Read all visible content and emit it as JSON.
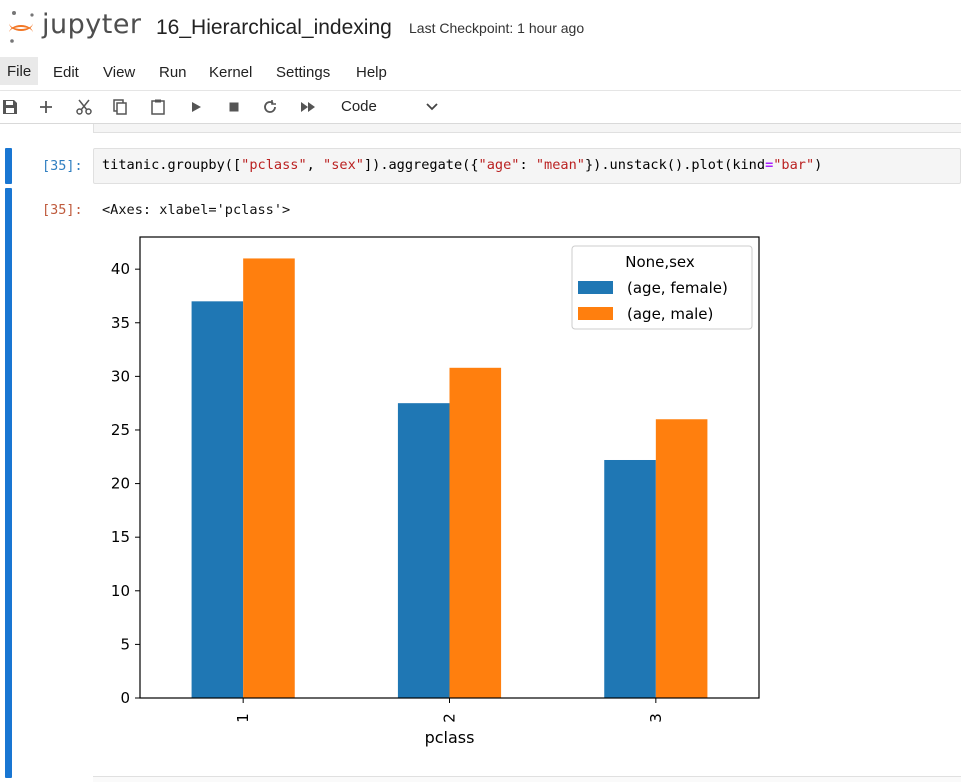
{
  "header": {
    "brand": "jupyter",
    "notebook_name": "16_Hierarchical_indexing",
    "checkpoint": "Last Checkpoint: 1 hour ago"
  },
  "menu": {
    "items": [
      "File",
      "Edit",
      "View",
      "Run",
      "Kernel",
      "Settings",
      "Help"
    ]
  },
  "toolbar": {
    "icons": [
      "save-icon",
      "add-cell-icon",
      "cut-icon",
      "copy-icon",
      "paste-icon",
      "run-icon",
      "stop-icon",
      "restart-icon",
      "run-all-icon"
    ],
    "cell_type": "Code"
  },
  "cell": {
    "in_prompt": "[35]:",
    "out_prompt": "[35]:",
    "code_tokens": [
      {
        "t": "titanic",
        "c": "name"
      },
      {
        "t": ".",
        "c": "punc"
      },
      {
        "t": "groupby",
        "c": "name"
      },
      {
        "t": "([",
        "c": "punc"
      },
      {
        "t": "\"pclass\"",
        "c": "str"
      },
      {
        "t": ", ",
        "c": "punc"
      },
      {
        "t": "\"sex\"",
        "c": "str"
      },
      {
        "t": "])",
        "c": "punc"
      },
      {
        "t": ".",
        "c": "punc"
      },
      {
        "t": "aggregate",
        "c": "name"
      },
      {
        "t": "({",
        "c": "punc"
      },
      {
        "t": "\"age\"",
        "c": "str"
      },
      {
        "t": ": ",
        "c": "punc"
      },
      {
        "t": "\"mean\"",
        "c": "str"
      },
      {
        "t": "})",
        "c": "punc"
      },
      {
        "t": ".",
        "c": "punc"
      },
      {
        "t": "unstack",
        "c": "name"
      },
      {
        "t": "()",
        "c": "punc"
      },
      {
        "t": ".",
        "c": "punc"
      },
      {
        "t": "plot",
        "c": "name"
      },
      {
        "t": "(",
        "c": "punc"
      },
      {
        "t": "kind",
        "c": "name"
      },
      {
        "t": "=",
        "c": "op"
      },
      {
        "t": "\"bar\"",
        "c": "str"
      },
      {
        "t": ")",
        "c": "punc"
      }
    ],
    "output_text": "<Axes: xlabel='pclass'>"
  },
  "colors": {
    "accent": "#1976d2",
    "female": "#1f77b4",
    "male": "#ff7f0e"
  },
  "chart_data": {
    "type": "bar",
    "categories": [
      "1",
      "2",
      "3"
    ],
    "series": [
      {
        "name": "(age, female)",
        "values": [
          37.0,
          27.5,
          22.2
        ]
      },
      {
        "name": "(age, male)",
        "values": [
          41.0,
          30.8,
          26.0
        ]
      }
    ],
    "xlabel": "pclass",
    "ylabel": "",
    "ylim": [
      0,
      43
    ],
    "yticks": [
      0,
      5,
      10,
      15,
      20,
      25,
      30,
      35,
      40
    ],
    "legend_title": "None,sex",
    "legend_position": "upper right",
    "grid": false
  }
}
